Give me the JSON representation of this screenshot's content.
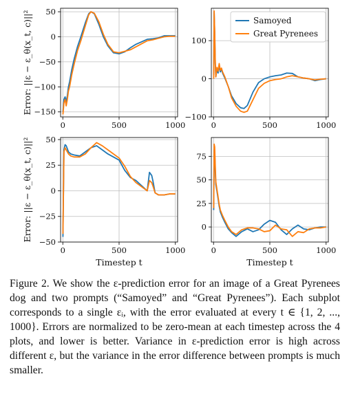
{
  "chart_data": [
    {
      "type": "line",
      "ylabel": "Error: ||ε − ε_θ(x_t, c)||²",
      "xlabel": "",
      "xlim": [
        -20,
        1020
      ],
      "ylim": [
        -160,
        57
      ],
      "xticks": [
        0,
        500,
        1000
      ],
      "yticks": [
        -150,
        -100,
        -50,
        0,
        50
      ],
      "grid": true,
      "series": [
        {
          "name": "Samoyed",
          "color": "#1f77b4",
          "x": [
            1,
            10,
            20,
            30,
            40,
            50,
            60,
            80,
            100,
            130,
            160,
            200,
            230,
            250,
            280,
            320,
            360,
            400,
            450,
            500,
            550,
            600,
            650,
            700,
            750,
            800,
            850,
            900,
            950,
            1000
          ],
          "y": [
            -150,
            -125,
            -120,
            -130,
            -118,
            -100,
            -90,
            -65,
            -45,
            -20,
            0,
            28,
            46,
            50,
            46,
            25,
            0,
            -18,
            -32,
            -34,
            -30,
            -22,
            -15,
            -10,
            -5,
            -4,
            -2,
            2,
            2,
            2
          ]
        },
        {
          "name": "Great Pyrenees",
          "color": "#ff7f0e",
          "x": [
            1,
            10,
            20,
            30,
            40,
            50,
            60,
            80,
            100,
            130,
            160,
            200,
            230,
            250,
            280,
            320,
            360,
            400,
            450,
            500,
            550,
            600,
            650,
            700,
            750,
            800,
            850,
            900,
            950,
            1000
          ],
          "y": [
            -155,
            -132,
            -125,
            -138,
            -125,
            -108,
            -100,
            -75,
            -55,
            -28,
            -8,
            22,
            44,
            50,
            47,
            30,
            5,
            -15,
            -30,
            -32,
            -29,
            -26,
            -20,
            -14,
            -8,
            -6,
            -3,
            0,
            1,
            1
          ]
        }
      ]
    },
    {
      "type": "line",
      "xlabel": "",
      "ylabel": "",
      "xlim": [
        -20,
        1020
      ],
      "ylim": [
        -100,
        185
      ],
      "xticks": [
        0,
        500,
        1000
      ],
      "yticks": [
        -100,
        0,
        100
      ],
      "grid": true,
      "legend": {
        "position": "top-right",
        "entries": [
          "Samoyed",
          "Great Pyrenees"
        ]
      },
      "series": [
        {
          "name": "Samoyed",
          "color": "#1f77b4",
          "x": [
            1,
            5,
            10,
            15,
            20,
            30,
            40,
            50,
            60,
            70,
            80,
            100,
            130,
            160,
            200,
            240,
            270,
            300,
            350,
            400,
            450,
            500,
            550,
            600,
            650,
            700,
            750,
            800,
            850,
            900,
            950,
            1000
          ],
          "y": [
            10,
            175,
            120,
            40,
            5,
            25,
            15,
            35,
            18,
            25,
            15,
            2,
            -20,
            -45,
            -65,
            -76,
            -78,
            -70,
            -35,
            -10,
            0,
            5,
            8,
            10,
            15,
            14,
            5,
            2,
            0,
            -5,
            -2,
            0
          ]
        },
        {
          "name": "Great Pyrenees",
          "color": "#ff7f0e",
          "x": [
            1,
            5,
            10,
            15,
            20,
            30,
            40,
            50,
            60,
            70,
            80,
            100,
            130,
            160,
            200,
            240,
            270,
            300,
            350,
            400,
            450,
            500,
            550,
            600,
            650,
            700,
            750,
            800,
            850,
            900,
            950,
            1000
          ],
          "y": [
            0,
            178,
            125,
            45,
            5,
            30,
            20,
            40,
            22,
            28,
            18,
            5,
            -20,
            -50,
            -72,
            -85,
            -88,
            -85,
            -55,
            -25,
            -12,
            -5,
            -2,
            0,
            5,
            8,
            5,
            2,
            0,
            -3,
            -1,
            0
          ]
        }
      ]
    },
    {
      "type": "line",
      "xlabel": "Timestep t",
      "ylabel": "Error: ||ε − ε_θ(x_t, c)||²",
      "xlim": [
        -20,
        1020
      ],
      "ylim": [
        -50,
        52
      ],
      "xticks": [
        0,
        500,
        1000
      ],
      "yticks": [
        -50,
        -25,
        0,
        25,
        50
      ],
      "grid": true,
      "series": [
        {
          "name": "Samoyed",
          "color": "#1f77b4",
          "x": [
            1,
            10,
            20,
            30,
            50,
            70,
            100,
            150,
            200,
            250,
            300,
            350,
            400,
            450,
            500,
            550,
            600,
            650,
            700,
            750,
            770,
            790,
            800,
            820,
            850,
            900,
            950,
            1000
          ],
          "y": [
            -45,
            40,
            45,
            44,
            38,
            36,
            35,
            34,
            38,
            42,
            44,
            40,
            36,
            33,
            30,
            20,
            13,
            10,
            5,
            0,
            18,
            15,
            10,
            -2,
            -4,
            -4,
            -3,
            -3
          ]
        },
        {
          "name": "Great Pyrenees",
          "color": "#ff7f0e",
          "x": [
            1,
            10,
            20,
            30,
            50,
            70,
            100,
            150,
            200,
            250,
            300,
            350,
            400,
            450,
            500,
            550,
            600,
            650,
            700,
            750,
            770,
            790,
            800,
            820,
            850,
            900,
            950,
            1000
          ],
          "y": [
            -42,
            38,
            42,
            40,
            36,
            34,
            33,
            33,
            36,
            42,
            47,
            44,
            40,
            36,
            32,
            24,
            14,
            8,
            4,
            0,
            10,
            8,
            5,
            -2,
            -4,
            -4,
            -3,
            -3
          ]
        }
      ]
    },
    {
      "type": "line",
      "xlabel": "Timestep t",
      "ylabel": "",
      "xlim": [
        -20,
        1020
      ],
      "ylim": [
        -16,
        95
      ],
      "xticks": [
        0,
        500,
        1000
      ],
      "yticks": [
        0,
        25,
        50,
        75
      ],
      "grid": true,
      "series": [
        {
          "name": "Samoyed",
          "color": "#1f77b4",
          "x": [
            1,
            5,
            10,
            15,
            20,
            30,
            40,
            50,
            60,
            80,
            100,
            130,
            160,
            200,
            250,
            300,
            350,
            400,
            450,
            500,
            550,
            600,
            650,
            700,
            750,
            800,
            850,
            900,
            950,
            1000
          ],
          "y": [
            18,
            82,
            80,
            60,
            45,
            38,
            30,
            22,
            16,
            10,
            5,
            -2,
            -6,
            -10,
            -5,
            -2,
            -5,
            -3,
            3,
            7,
            5,
            -3,
            -8,
            -2,
            2,
            -2,
            -3,
            -1,
            0,
            0
          ]
        },
        {
          "name": "Great Pyrenees",
          "color": "#ff7f0e",
          "x": [
            1,
            5,
            10,
            15,
            20,
            30,
            40,
            50,
            60,
            80,
            100,
            130,
            160,
            200,
            250,
            300,
            350,
            400,
            450,
            500,
            550,
            600,
            650,
            700,
            750,
            800,
            850,
            900,
            950,
            1000
          ],
          "y": [
            20,
            88,
            85,
            65,
            48,
            40,
            32,
            24,
            18,
            12,
            7,
            0,
            -5,
            -8,
            -3,
            -1,
            -1,
            -2,
            -5,
            -4,
            2,
            -2,
            -3,
            -10,
            -5,
            -6,
            -2,
            -1,
            -1,
            0
          ]
        }
      ]
    }
  ],
  "caption": {
    "text": "Figure 2. We show the ε-prediction error for an image of a Great Pyrenees dog and two prompts (“Samoyed” and “Great Pyrenees”). Each subplot corresponds to a single εᵢ, with the error evaluated at every t ∈ {1, 2, ..., 1000}. Errors are normalized to be zero-mean at each timestep across the 4 plots, and lower is better. Variance in ε-prediction error is high across different ε, but the variance in the error difference between prompts is much smaller."
  }
}
